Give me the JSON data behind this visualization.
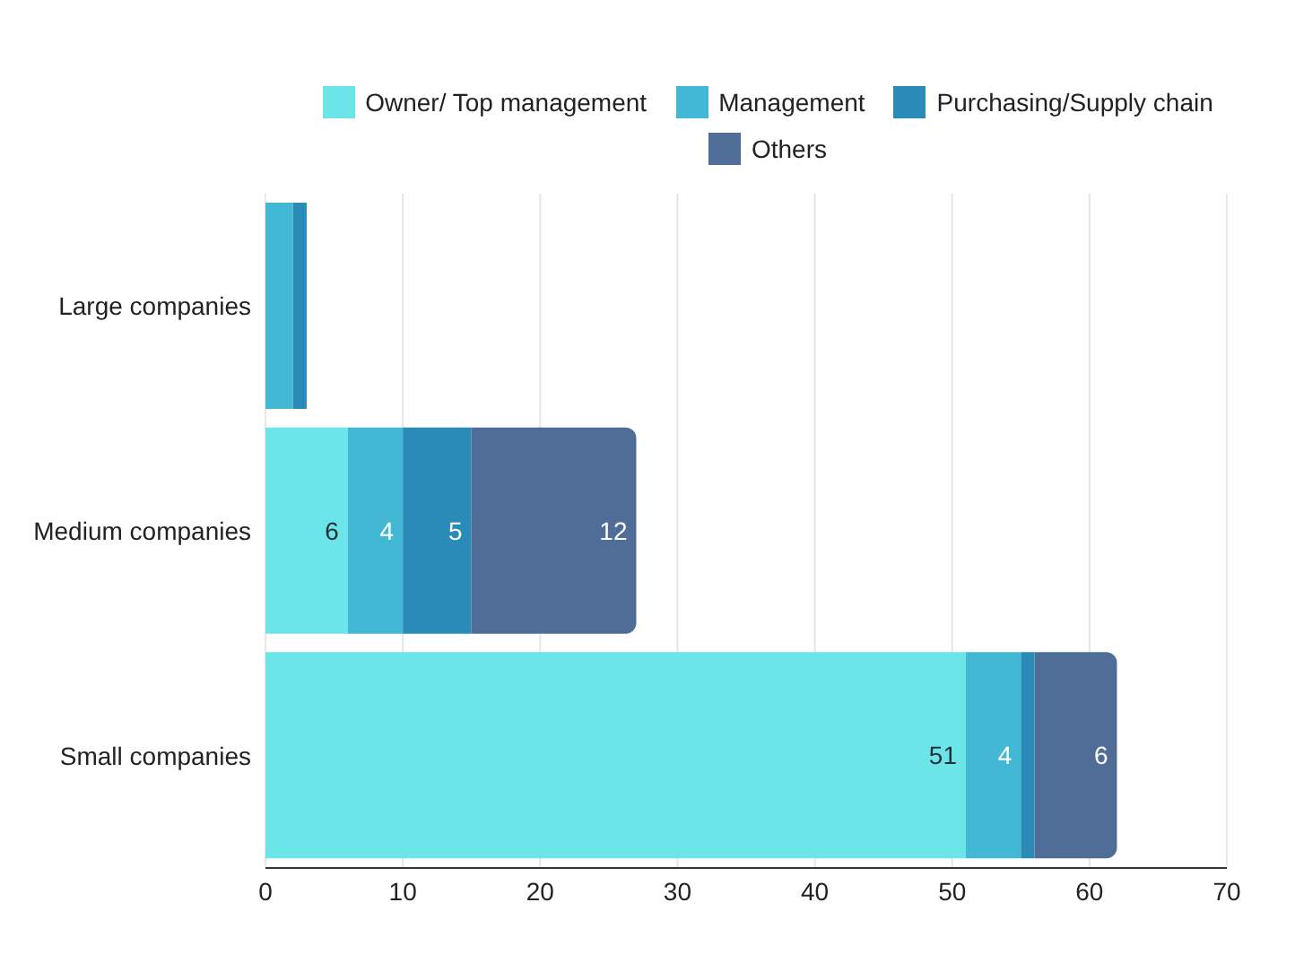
{
  "chart_data": {
    "type": "bar",
    "orientation": "horizontal",
    "stacked": true,
    "categories": [
      "Large companies",
      "Medium companies",
      "Small companies"
    ],
    "series": [
      {
        "name": "Owner/ Top management",
        "color": "#6ce5e8",
        "values": [
          0,
          6,
          51
        ],
        "value_labels": [
          null,
          "6",
          "51"
        ]
      },
      {
        "name": "Management",
        "color": "#42b8d5",
        "values": [
          2,
          4,
          4
        ],
        "value_labels": [
          null,
          "4",
          "4"
        ]
      },
      {
        "name": "Purchasing/Supply chain",
        "color": "#2a8bb8",
        "values": [
          1,
          5,
          1
        ],
        "value_labels": [
          null,
          "5",
          null
        ]
      },
      {
        "name": "Others",
        "color": "#4f6d97",
        "values": [
          null,
          12,
          6
        ],
        "value_labels": [
          null,
          "12",
          "6"
        ]
      }
    ],
    "xlim": [
      0,
      70
    ],
    "xticks": [
      0,
      10,
      20,
      30,
      40,
      50,
      60,
      70
    ],
    "grid": "x",
    "legend": "top"
  }
}
